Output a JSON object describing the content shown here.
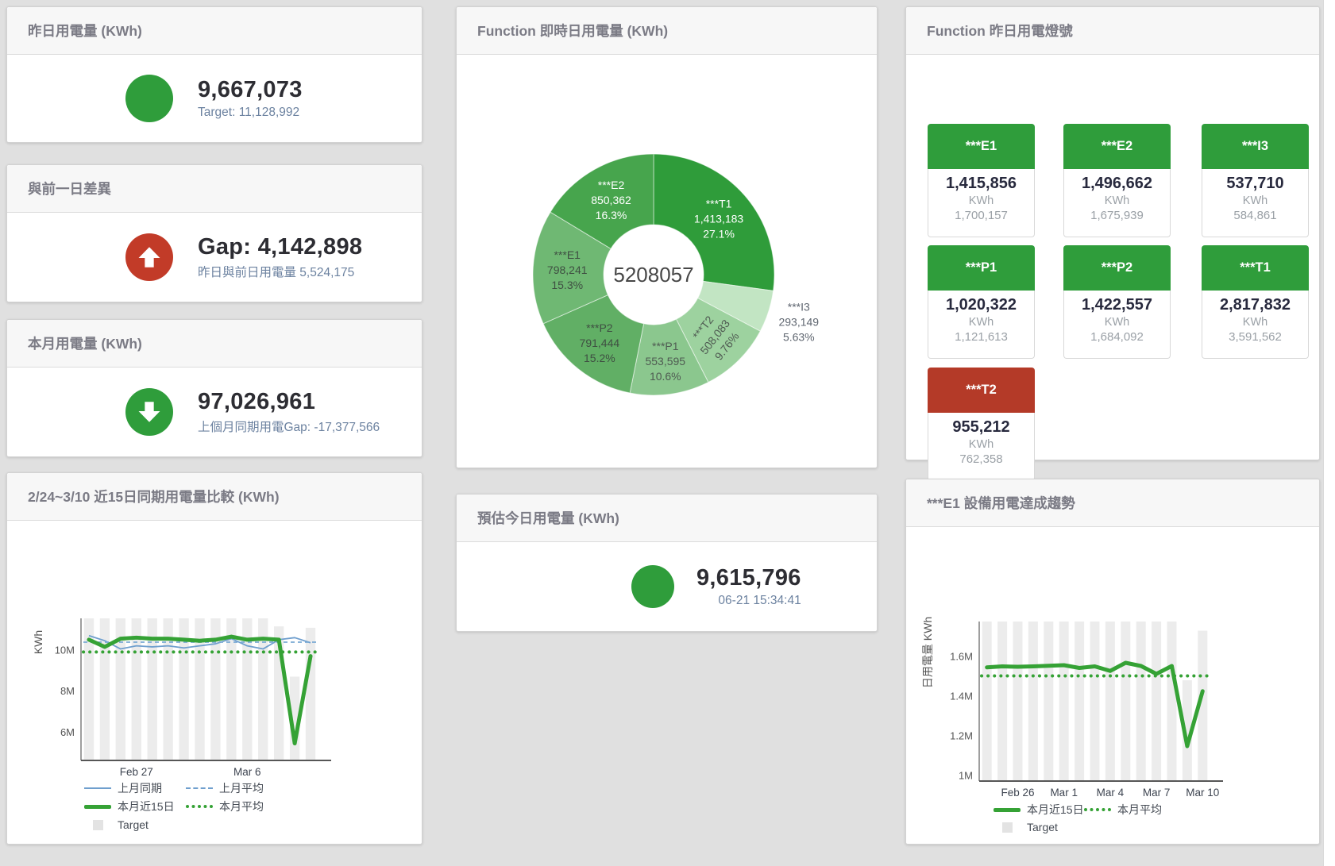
{
  "colors": {
    "green": "#2f9d3b",
    "red": "#c23b28",
    "blue": "#6f9fce",
    "target_bar": "#ececec"
  },
  "cards": {
    "yesterday": {
      "title": "昨日用電量 (KWh)",
      "value": "9,667,073",
      "subtitle": "Target: 11,128,992"
    },
    "day_gap": {
      "title": "與前一日差異",
      "value": "Gap: 4,142,898",
      "subtitle": "昨日與前日用電量 5,524,175"
    },
    "month": {
      "title": "本月用電量 (KWh)",
      "value": "97,026,961",
      "subtitle": "上個月同期用電Gap: -17,377,566"
    },
    "realtime": {
      "title": "Function 即時日用電量 (KWh)"
    },
    "lights": {
      "title": "Function 昨日用電燈號",
      "unit": "KWh",
      "tiles": [
        {
          "name": "***E1",
          "value": "1,415,856",
          "target": "1,700,157",
          "status": "green"
        },
        {
          "name": "***E2",
          "value": "1,496,662",
          "target": "1,675,939",
          "status": "green"
        },
        {
          "name": "***I3",
          "value": "537,710",
          "target": "584,861",
          "status": "green"
        },
        {
          "name": "***P1",
          "value": "1,020,322",
          "target": "1,121,613",
          "status": "green"
        },
        {
          "name": "***P2",
          "value": "1,422,557",
          "target": "1,684,092",
          "status": "green"
        },
        {
          "name": "***T1",
          "value": "2,817,832",
          "target": "3,591,562",
          "status": "green"
        },
        {
          "name": "***T2",
          "value": "955,212",
          "target": "762,358",
          "status": "red"
        }
      ]
    },
    "compare": {
      "title": "2/24~3/10 近15日同期用電量比較 (KWh)"
    },
    "estimate": {
      "title": "預估今日用電量 (KWh)",
      "value": "9,615,796",
      "subtitle": "06-21 15:34:41"
    },
    "trend": {
      "title": "***E1 設備用電達成趨勢"
    }
  },
  "chart_data": [
    {
      "id": "realtime_donut",
      "type": "pie",
      "title": "Function 即時日用電量 (KWh)",
      "center_label": "5208057",
      "slices": [
        {
          "name": "***T1",
          "value": 1413183,
          "pct": "27.1%",
          "color": "#2f9c3a",
          "text": "#ffffff"
        },
        {
          "name": "***I3",
          "value": 293149,
          "pct": "5.63%",
          "color": "#c2e5c3",
          "text": "#5f6670",
          "outside": true
        },
        {
          "name": "***T2",
          "value": 508083,
          "pct": "9.76%",
          "color": "#9dd29f",
          "text": "#4f5b52",
          "rotate": -52
        },
        {
          "name": "***P1",
          "value": 553595,
          "pct": "10.6%",
          "color": "#8bc78e",
          "text": "#4f5b52"
        },
        {
          "name": "***P2",
          "value": 791444,
          "pct": "15.2%",
          "color": "#61af65",
          "text": "#3f4f42"
        },
        {
          "name": "***E1",
          "value": 798241,
          "pct": "15.3%",
          "color": "#6fb873",
          "text": "#3f4f42"
        },
        {
          "name": "***E2",
          "value": 850362,
          "pct": "16.3%",
          "color": "#47a54d",
          "text": "#ffffff"
        }
      ]
    },
    {
      "id": "compare_chart",
      "type": "line",
      "title": "2/24~3/10 近15日同期用電量比較 (KWh)",
      "ylabel": "KWh",
      "n": 15,
      "ylim": [
        4620000,
        11540000
      ],
      "yticks": [
        {
          "value": 6000000,
          "label": "6M"
        },
        {
          "value": 8000000,
          "label": "8M"
        },
        {
          "value": 10000000,
          "label": "10M"
        }
      ],
      "xticks": [
        {
          "index": 3,
          "label": "Feb 27"
        },
        {
          "index": 10,
          "label": "Mar 6"
        }
      ],
      "bars": {
        "name": "Target",
        "color": "#ececec",
        "values": [
          11540000,
          11540000,
          11540000,
          11540000,
          11540000,
          11540000,
          11540000,
          11540000,
          11540000,
          11540000,
          11540000,
          11540000,
          11150000,
          8700000,
          11080000
        ]
      },
      "series": [
        {
          "name": "上月同期",
          "color": "#6f9fce",
          "width": 1.8,
          "values": [
            10700000,
            10450000,
            10050000,
            10200000,
            10150000,
            10200000,
            10100000,
            10200000,
            10300000,
            10550000,
            10200000,
            10050000,
            10500000,
            10600000,
            10350000
          ]
        },
        {
          "name": "上月平均",
          "color": "#7aa9d4",
          "width": 1.8,
          "dash": "5 4",
          "const": 10380000
        },
        {
          "name": "本月平均",
          "color": "#35a235",
          "width": 4,
          "dash": "0.1 8",
          "linecap": "round",
          "const": 9900000
        },
        {
          "name": "本月近15日",
          "color": "#35a235",
          "width": 5,
          "linecap": "round",
          "values": [
            10500000,
            10150000,
            10550000,
            10600000,
            10550000,
            10550000,
            10500000,
            10450000,
            10500000,
            10650000,
            10500000,
            10550000,
            10500000,
            5450000,
            9700000
          ]
        }
      ]
    },
    {
      "id": "trend_chart",
      "type": "line",
      "title": "***E1 設備用電達成趨勢",
      "ylabel": "日用電量 KWh",
      "n": 15,
      "ylim": [
        972000,
        1776000
      ],
      "yticks": [
        {
          "value": 1000000,
          "label": "1M"
        },
        {
          "value": 1200000,
          "label": "1.2M"
        },
        {
          "value": 1400000,
          "label": "1.4M"
        },
        {
          "value": 1600000,
          "label": "1.6M"
        }
      ],
      "xticks": [
        {
          "index": 2,
          "label": "Feb 26"
        },
        {
          "index": 5,
          "label": "Mar 1"
        },
        {
          "index": 8,
          "label": "Mar 4"
        },
        {
          "index": 11,
          "label": "Mar 7"
        },
        {
          "index": 14,
          "label": "Mar 10"
        }
      ],
      "bars": {
        "name": "Target",
        "color": "#ececec",
        "values": [
          1776000,
          1776000,
          1776000,
          1776000,
          1776000,
          1776000,
          1776000,
          1776000,
          1776000,
          1776000,
          1776000,
          1776000,
          1776000,
          1480000,
          1730000
        ]
      },
      "series": [
        {
          "name": "本月平均",
          "color": "#35a235",
          "width": 4,
          "dash": "0.1 8",
          "linecap": "round",
          "const": 1502000
        },
        {
          "name": "本月近15日",
          "color": "#35a235",
          "width": 5,
          "linecap": "round",
          "values": [
            1545000,
            1550000,
            1548000,
            1550000,
            1553000,
            1556000,
            1542000,
            1550000,
            1527000,
            1568000,
            1552000,
            1512000,
            1552000,
            1148000,
            1425000
          ]
        }
      ]
    }
  ]
}
